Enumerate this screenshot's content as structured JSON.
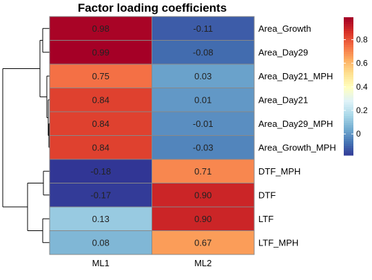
{
  "chart_data": {
    "type": "heatmap",
    "title": "Factor loading coefficients",
    "rows": [
      "Area_Growth",
      "Area_Day29",
      "Area_Day21_MPH",
      "Area_Day21",
      "Area_Day29_MPH",
      "Area_Growth_MPH",
      "DTF_MPH",
      "DTF",
      "LTF",
      "LTF_MPH"
    ],
    "columns": [
      "ML1",
      "ML2"
    ],
    "values": [
      [
        0.98,
        -0.11
      ],
      [
        0.99,
        -0.08
      ],
      [
        0.75,
        0.03
      ],
      [
        0.84,
        0.01
      ],
      [
        0.84,
        -0.01
      ],
      [
        0.84,
        -0.03
      ],
      [
        -0.18,
        0.71
      ],
      [
        -0.17,
        0.9
      ],
      [
        0.13,
        0.9
      ],
      [
        0.08,
        0.67
      ]
    ],
    "labels": [
      [
        "0.98",
        "-0.11"
      ],
      [
        "0.99",
        "-0.08"
      ],
      [
        "0.75",
        "0.03"
      ],
      [
        "0.84",
        "0.01"
      ],
      [
        "0.84",
        "-0.01"
      ],
      [
        "0.84",
        "-0.03"
      ],
      [
        "-0.18",
        "0.71"
      ],
      [
        "-0.17",
        "0.90"
      ],
      [
        "0.13",
        "0.90"
      ],
      [
        "0.08",
        "0.67"
      ]
    ],
    "color_range": [
      -0.18,
      0.99
    ],
    "colorscale": [
      "#313695",
      "#4575b4",
      "#74add1",
      "#abd9e9",
      "#e0f3f8",
      "#ffffbf",
      "#fee090",
      "#fdae61",
      "#f46d43",
      "#d73027",
      "#a50026"
    ],
    "legend": {
      "position": "right",
      "ticks": [
        0,
        0.2,
        0.4,
        0.6,
        0.8
      ],
      "tick_labels": [
        "0",
        "0.2",
        "0.4",
        "0.6",
        "0.8"
      ]
    },
    "row_dendrogram": true,
    "cell_border_color": "#888888"
  }
}
